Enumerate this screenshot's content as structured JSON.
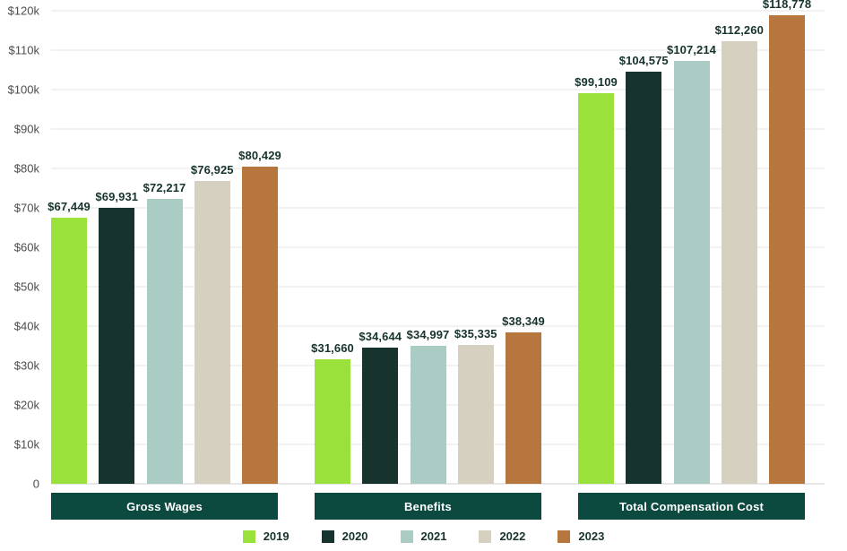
{
  "chart_data": {
    "type": "bar",
    "title": "",
    "categories": [
      "Gross Wages",
      "Benefits",
      "Total Compensation Cost"
    ],
    "series": [
      {
        "name": "2019",
        "color": "#9BE13B",
        "values": [
          67449,
          31660,
          99109
        ],
        "labels": [
          "$67,449",
          "$31,660",
          "$99,109"
        ]
      },
      {
        "name": "2020",
        "color": "#17332E",
        "values": [
          69931,
          34644,
          104575
        ],
        "labels": [
          "$69,931",
          "$34,644",
          "$104,575"
        ]
      },
      {
        "name": "2021",
        "color": "#ABCCC4",
        "values": [
          72217,
          34997,
          107214
        ],
        "labels": [
          "$72,217",
          "$34,997",
          "$107,214"
        ]
      },
      {
        "name": "2022",
        "color": "#D6D0C0",
        "values": [
          76925,
          35335,
          112260
        ],
        "labels": [
          "$76,925",
          "$35,335",
          "$112,260"
        ]
      },
      {
        "name": "2023",
        "color": "#B6763D",
        "values": [
          80429,
          38349,
          118778
        ],
        "labels": [
          "$80,429",
          "$38,349",
          "$118,778"
        ]
      }
    ],
    "y_axis": {
      "tick_labels": [
        "0",
        "$10k",
        "$20k",
        "$30k",
        "$40k",
        "$50k",
        "$60k",
        "$70k",
        "$80k",
        "$90k",
        "$100k",
        "$110k",
        "$120k"
      ],
      "tick_values": [
        0,
        10000,
        20000,
        30000,
        40000,
        50000,
        60000,
        70000,
        80000,
        90000,
        100000,
        110000,
        120000
      ],
      "max": 120000
    },
    "legend": [
      "2019",
      "2020",
      "2021",
      "2022",
      "2023"
    ],
    "legend_position": "bottom",
    "grid": true,
    "xlabel": "",
    "ylabel": ""
  },
  "colors": {
    "category_band": "#0C4A40",
    "category_text": "#FFFFFF",
    "grid_line": "#E6E6E6",
    "axis_text": "#4D4D4D",
    "value_label": "#17332E",
    "background": "#FFFFFF"
  }
}
